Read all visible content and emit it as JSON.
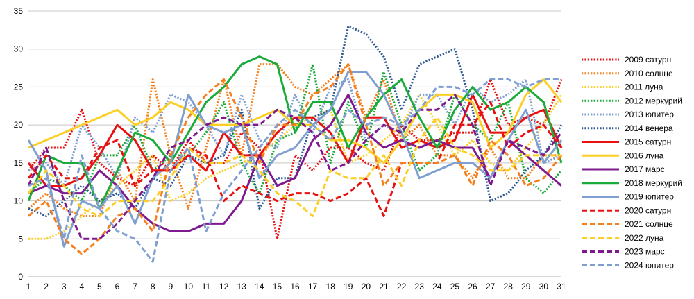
{
  "chart_data": {
    "type": "line",
    "title": "",
    "xlabel": "",
    "ylabel": "",
    "ylim": [
      0,
      35
    ],
    "yticks": [
      0,
      5,
      10,
      15,
      20,
      25,
      30,
      35
    ],
    "grid": "horizontal",
    "legend_position": "right",
    "x": [
      1,
      2,
      3,
      4,
      5,
      6,
      7,
      8,
      9,
      10,
      11,
      12,
      13,
      14,
      15,
      16,
      17,
      18,
      19,
      20,
      21,
      22,
      23,
      24,
      25,
      26,
      27,
      28,
      29,
      30,
      31
    ],
    "series": [
      {
        "name": "2009 сатурн",
        "color": "#e81010",
        "style": "dotted",
        "values": [
          14,
          17,
          17,
          22,
          15,
          13,
          12,
          16,
          14,
          18,
          15,
          15,
          19,
          17,
          5,
          16,
          14,
          17,
          17,
          15,
          14,
          20,
          18,
          18,
          19,
          19,
          26,
          20,
          21,
          20,
          26
        ]
      },
      {
        "name": "2010 солнце",
        "color": "#f57f1b",
        "style": "dotted",
        "values": [
          9,
          11,
          9,
          8,
          8,
          14,
          10,
          26,
          16,
          9,
          17,
          26,
          16,
          28,
          28,
          25,
          24,
          26,
          28,
          21,
          26,
          18,
          20,
          16,
          16,
          13,
          17,
          13,
          13,
          16,
          16
        ]
      },
      {
        "name": "2011 луна",
        "color": "#fccf26",
        "style": "dotted",
        "values": [
          5,
          5,
          6,
          8,
          10,
          12,
          14,
          16,
          10,
          11,
          13,
          14,
          15,
          16,
          18,
          20,
          21,
          22,
          15,
          16,
          18,
          20,
          24,
          20,
          16,
          18,
          15,
          14,
          17,
          20,
          24
        ]
      },
      {
        "name": "2012 меркурий",
        "color": "#1aab3a",
        "style": "dotted",
        "values": [
          11,
          13,
          12,
          10,
          16,
          16,
          20,
          14,
          16,
          16,
          19,
          23,
          15,
          11,
          18,
          19,
          28,
          15,
          23,
          17,
          27,
          20,
          14,
          16,
          24,
          20,
          18,
          23,
          13,
          11,
          14
        ]
      },
      {
        "name": "2013 юпитер",
        "color": "#7f9fd1",
        "style": "dotted",
        "values": [
          14,
          15,
          12,
          20,
          17,
          13,
          21,
          19,
          24,
          23,
          20,
          16,
          24,
          18,
          17,
          24,
          19,
          25,
          26,
          18,
          20,
          19,
          24,
          24,
          20,
          25,
          23,
          24,
          26,
          15,
          16
        ]
      },
      {
        "name": "2014 венера",
        "color": "#2d5893",
        "style": "dotted",
        "values": [
          9,
          8,
          10,
          12,
          10,
          11,
          9,
          13,
          12,
          16,
          15,
          16,
          22,
          9,
          13,
          13,
          21,
          22,
          33,
          32,
          29,
          22,
          28,
          29,
          30,
          22,
          10,
          11,
          14,
          16,
          20
        ]
      },
      {
        "name": "2015 сатурн",
        "color": "#e81010",
        "style": "solid",
        "values": [
          15,
          12,
          12,
          13,
          16,
          20,
          18,
          14,
          14,
          16,
          14,
          19,
          16,
          16,
          19,
          21,
          21,
          19,
          15,
          21,
          21,
          17,
          18,
          17,
          18,
          24,
          19,
          19,
          21,
          22,
          17
        ]
      },
      {
        "name": "2016 луна",
        "color": "#fccf26",
        "style": "solid",
        "values": [
          17,
          18,
          19,
          20,
          21,
          22,
          20,
          21,
          23,
          22,
          20,
          20,
          20,
          21,
          22,
          20,
          20,
          18,
          18,
          17,
          15,
          18,
          22,
          24,
          24,
          23,
          17,
          19,
          24,
          26,
          23
        ]
      },
      {
        "name": "2017 марс",
        "color": "#7e1a8e",
        "style": "solid",
        "values": [
          11,
          12,
          11,
          11,
          14,
          12,
          9,
          7,
          6,
          6,
          7,
          7,
          10,
          16,
          12,
          13,
          18,
          20,
          24,
          19,
          17,
          18,
          17,
          18,
          17,
          17,
          13,
          18,
          16,
          14,
          12
        ]
      },
      {
        "name": "2018 меркурий",
        "color": "#1aab3a",
        "style": "solid",
        "values": [
          10,
          16,
          15,
          15,
          9,
          14,
          19,
          18,
          15,
          19,
          23,
          25,
          28,
          29,
          28,
          19,
          23,
          23,
          17,
          21,
          24,
          26,
          21,
          17,
          22,
          25,
          22,
          23,
          25,
          23,
          15
        ]
      },
      {
        "name": "2019 юпитер",
        "color": "#7f9fd1",
        "style": "solid",
        "values": [
          18,
          14,
          4,
          10,
          9,
          12,
          7,
          13,
          15,
          24,
          20,
          19,
          20,
          13,
          16,
          17,
          20,
          22,
          27,
          27,
          24,
          19,
          13,
          14,
          15,
          15,
          13,
          18,
          22,
          15,
          18
        ]
      },
      {
        "name": "2020 сатурн",
        "color": "#e81010",
        "style": "dashed",
        "values": [
          13,
          16,
          13,
          13,
          17,
          18,
          12,
          14,
          14,
          17,
          16,
          10,
          12,
          11,
          10,
          11,
          11,
          10,
          11,
          13,
          8,
          15,
          15,
          15,
          20,
          20,
          23,
          17,
          19,
          20,
          17
        ]
      },
      {
        "name": "2021 солнце",
        "color": "#f57f1b",
        "style": "dashed",
        "values": [
          8,
          10,
          5,
          3,
          5,
          8,
          9,
          6,
          16,
          21,
          24,
          26,
          21,
          15,
          20,
          20,
          24,
          25,
          28,
          20,
          12,
          15,
          15,
          15,
          16,
          12,
          18,
          16,
          12,
          13,
          16
        ]
      },
      {
        "name": "2022 луна",
        "color": "#fccf26",
        "style": "dashed",
        "values": [
          11,
          14,
          12,
          9,
          8,
          10,
          10,
          10,
          13,
          17,
          15,
          15,
          16,
          14,
          11,
          10,
          8,
          14,
          13,
          13,
          16,
          12,
          18,
          21,
          17,
          16,
          14,
          14,
          16,
          16,
          16
        ]
      },
      {
        "name": "2023 марс",
        "color": "#7e1a8e",
        "style": "dashed",
        "values": [
          12,
          17,
          10,
          5,
          5,
          7,
          10,
          13,
          17,
          18,
          20,
          21,
          20,
          20,
          22,
          21,
          19,
          14,
          15,
          18,
          20,
          19,
          22,
          22,
          24,
          20,
          12,
          18,
          17,
          16,
          19
        ]
      },
      {
        "name": "2024 юпитер",
        "color": "#7f9fd1",
        "style": "dashed",
        "values": [
          12,
          13,
          5,
          16,
          9,
          6,
          5,
          2,
          14,
          17,
          6,
          11,
          14,
          17,
          20,
          22,
          20,
          18,
          22,
          20,
          21,
          20,
          22,
          25,
          25,
          24,
          26,
          26,
          25,
          26,
          26
        ]
      }
    ]
  }
}
